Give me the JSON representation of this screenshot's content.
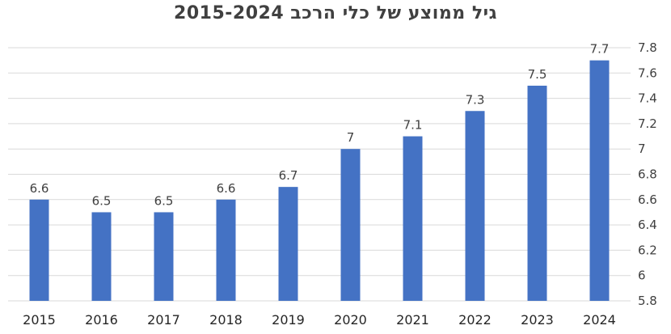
{
  "chart_data": {
    "type": "bar",
    "title": "גיל ממוצע של כלי הרכב 2015-2024",
    "categories": [
      "2015",
      "2016",
      "2017",
      "2018",
      "2019",
      "2020",
      "2021",
      "2022",
      "2023",
      "2024"
    ],
    "values": [
      6.6,
      6.5,
      6.5,
      6.6,
      6.7,
      7,
      7.1,
      7.3,
      7.5,
      7.7
    ],
    "data_labels": [
      "6.6",
      "6.5",
      "6.5",
      "6.6",
      "6.7",
      "7",
      "7.1",
      "7.3",
      "7.5",
      "7.7"
    ],
    "ylim": [
      5.8,
      7.8
    ],
    "yticks": [
      "5.8",
      "6",
      "6.2",
      "6.4",
      "6.6",
      "6.8",
      "7",
      "7.2",
      "7.4",
      "7.6",
      "7.8"
    ],
    "y_axis_side": "right",
    "grid": true,
    "bar_color": "#4472C4",
    "xlabel": "",
    "ylabel": ""
  }
}
